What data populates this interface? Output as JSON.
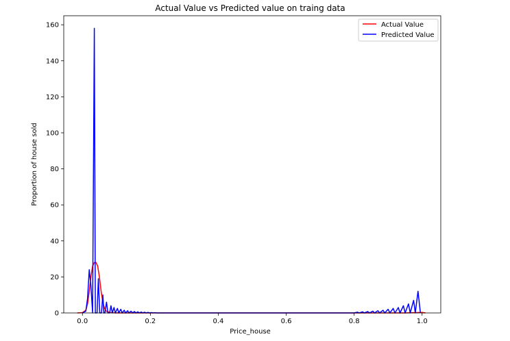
{
  "chart_data": {
    "type": "line",
    "title": "Actual Value vs Predicted value on traing data",
    "xlabel": "Price_house",
    "ylabel": "Proportion of house sold",
    "xlim": [
      -0.055,
      1.055
    ],
    "ylim": [
      0,
      165
    ],
    "xticks": [
      0.0,
      0.2,
      0.4,
      0.6,
      0.8,
      1.0
    ],
    "xtick_labels": [
      "0.0",
      "0.2",
      "0.4",
      "0.6",
      "0.8",
      "1.0"
    ],
    "yticks": [
      0,
      20,
      40,
      60,
      80,
      100,
      120,
      140,
      160
    ],
    "ytick_labels": [
      "0",
      "20",
      "40",
      "60",
      "80",
      "100",
      "120",
      "140",
      "160"
    ],
    "grid": false,
    "legend_position": "top-right",
    "series": [
      {
        "name": "Actual Value",
        "color": "#ff0000",
        "x": [
          -0.015,
          0.0,
          0.01,
          0.015,
          0.02,
          0.025,
          0.03,
          0.035,
          0.04,
          0.045,
          0.05,
          0.055,
          0.06,
          0.065,
          0.07,
          0.08,
          0.09,
          0.1,
          0.2,
          0.4,
          0.6,
          0.8,
          0.95,
          1.0,
          1.01
        ],
        "y": [
          0,
          0.2,
          1.5,
          5,
          12,
          20,
          26,
          28,
          28,
          26,
          20,
          12,
          6,
          2.5,
          1,
          0.3,
          0.1,
          0,
          0,
          0,
          0,
          0,
          0,
          0.3,
          0
        ]
      },
      {
        "name": "Predicted Value",
        "color": "#0000ff",
        "x": [
          0.0,
          0.01,
          0.015,
          0.02,
          0.025,
          0.03,
          0.035,
          0.038,
          0.043,
          0.047,
          0.051,
          0.056,
          0.06,
          0.063,
          0.066,
          0.071,
          0.075,
          0.08,
          0.084,
          0.088,
          0.093,
          0.097,
          0.103,
          0.107,
          0.113,
          0.117,
          0.123,
          0.127,
          0.133,
          0.137,
          0.143,
          0.148,
          0.153,
          0.158,
          0.163,
          0.168,
          0.173,
          0.178,
          0.183,
          0.188,
          0.193,
          0.198,
          0.203,
          0.208,
          0.213,
          0.218,
          0.3,
          0.4,
          0.5,
          0.6,
          0.7,
          0.8,
          0.81,
          0.815,
          0.825,
          0.83,
          0.84,
          0.845,
          0.855,
          0.86,
          0.87,
          0.875,
          0.885,
          0.89,
          0.9,
          0.905,
          0.915,
          0.92,
          0.93,
          0.935,
          0.945,
          0.95,
          0.96,
          0.965,
          0.975,
          0.98,
          0.988,
          0.995
        ],
        "y": [
          0,
          1,
          8,
          24,
          15,
          0,
          158,
          0,
          0,
          19,
          0,
          0,
          10,
          0,
          0,
          6,
          0,
          0,
          4,
          0,
          3,
          0,
          2.5,
          0,
          2,
          0,
          1.5,
          0,
          1.2,
          0,
          1,
          0,
          0.8,
          0,
          0.6,
          0,
          0.5,
          0,
          0.4,
          0,
          0.3,
          0,
          0.2,
          0,
          0.15,
          0,
          0,
          0,
          0,
          0,
          0,
          0,
          0.4,
          0,
          0.6,
          0,
          0.8,
          0,
          1,
          0,
          1.2,
          0,
          1.5,
          0,
          2,
          0,
          2.5,
          0,
          3,
          0,
          4,
          0,
          5,
          0,
          7,
          0,
          12,
          0
        ]
      }
    ]
  }
}
